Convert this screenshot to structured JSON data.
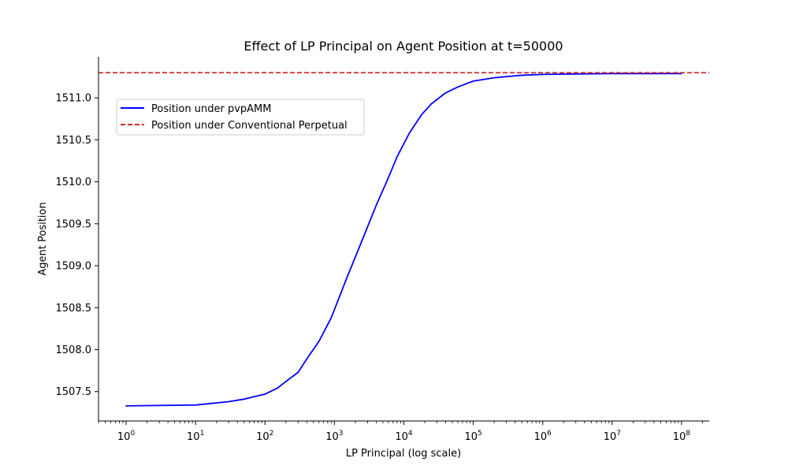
{
  "chart_data": {
    "type": "line",
    "title": "Effect of LP Principal on Agent Position at t=50000",
    "xlabel": "LP Principal (log scale)",
    "ylabel": "Agent Position",
    "xscale": "log",
    "xlim": [
      0.4,
      250000000
    ],
    "ylim": [
      1507.15,
      1511.49
    ],
    "x_ticks": [
      1,
      10,
      100,
      1000,
      10000,
      100000,
      1000000,
      10000000,
      100000000
    ],
    "x_tick_labels": [
      {
        "base": "10",
        "exp": "0"
      },
      {
        "base": "10",
        "exp": "1"
      },
      {
        "base": "10",
        "exp": "2"
      },
      {
        "base": "10",
        "exp": "3"
      },
      {
        "base": "10",
        "exp": "4"
      },
      {
        "base": "10",
        "exp": "5"
      },
      {
        "base": "10",
        "exp": "6"
      },
      {
        "base": "10",
        "exp": "7"
      },
      {
        "base": "10",
        "exp": "8"
      }
    ],
    "y_ticks": [
      1507.5,
      1508.0,
      1508.5,
      1509.0,
      1509.5,
      1510.0,
      1510.5,
      1511.0
    ],
    "y_tick_labels": [
      "1507.5",
      "1508.0",
      "1508.5",
      "1509.0",
      "1509.5",
      "1510.0",
      "1510.5",
      "1511.0"
    ],
    "grid": false,
    "legend_position": "upper-left",
    "colors": {
      "pvpamm": "#0000ff",
      "conventional": "#d62728"
    },
    "series": [
      {
        "name": "Position under pvpAMM",
        "style": "solid",
        "x": [
          1,
          10,
          30,
          50,
          70,
          100,
          150,
          200,
          300,
          400,
          600,
          900,
          1500,
          2500,
          4000,
          6000,
          8000,
          12000,
          18000,
          25000,
          40000,
          60000,
          80000,
          100000,
          200000,
          500000,
          1000000,
          10000000,
          100000000
        ],
        "y": [
          1507.33,
          1507.34,
          1507.38,
          1507.41,
          1507.44,
          1507.47,
          1507.54,
          1507.62,
          1507.73,
          1507.89,
          1508.1,
          1508.38,
          1508.85,
          1509.3,
          1509.72,
          1510.05,
          1510.3,
          1510.58,
          1510.8,
          1510.93,
          1511.06,
          1511.13,
          1511.17,
          1511.2,
          1511.24,
          1511.27,
          1511.28,
          1511.29,
          1511.29
        ]
      },
      {
        "name": "Position under Conventional Perpetual",
        "style": "dashed",
        "y_constant": 1511.3
      }
    ]
  }
}
